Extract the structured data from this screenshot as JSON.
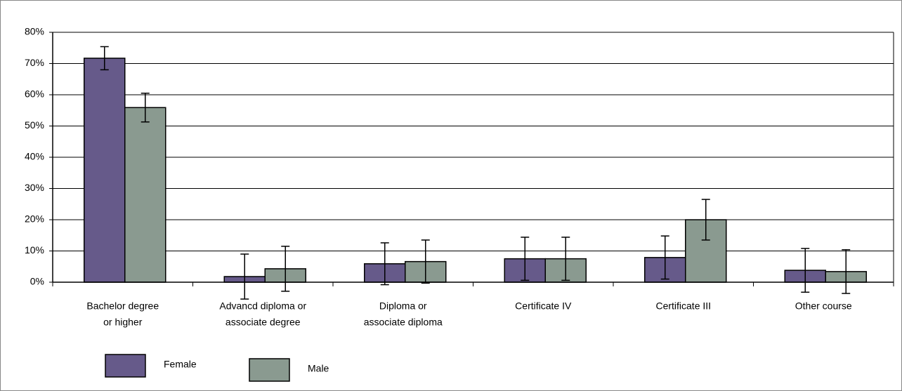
{
  "chart_data": {
    "type": "bar",
    "categories": [
      [
        "Bachelor degree",
        "or higher"
      ],
      [
        "Advancd diploma or",
        "associate degree"
      ],
      [
        "Diploma or",
        "associate diploma"
      ],
      [
        "Certificate IV"
      ],
      [
        "Certificate III"
      ],
      [
        "Other course"
      ]
    ],
    "series": [
      {
        "name": "Female",
        "color": "#665a8a",
        "values": [
          71.7,
          1.8,
          5.9,
          7.5,
          7.9,
          3.8
        ],
        "errors": [
          3.7,
          7.2,
          6.7,
          6.9,
          6.9,
          7.0
        ]
      },
      {
        "name": "Male",
        "color": "#8a9a90",
        "values": [
          55.9,
          4.3,
          6.6,
          7.5,
          20.0,
          3.4
        ],
        "errors": [
          4.6,
          7.2,
          6.9,
          6.9,
          6.5,
          7.0
        ]
      }
    ],
    "ylim": [
      0,
      80
    ],
    "yticks": [
      {
        "value": 0,
        "label": "0%"
      },
      {
        "value": 10,
        "label": "10%"
      },
      {
        "value": 20,
        "label": "20%"
      },
      {
        "value": 30,
        "label": "30%"
      },
      {
        "value": 40,
        "label": "40%"
      },
      {
        "value": 50,
        "label": "50%"
      },
      {
        "value": 60,
        "label": "60%"
      },
      {
        "value": 70,
        "label": "70%"
      },
      {
        "value": 80,
        "label": "80%"
      }
    ],
    "grid": true,
    "legend": "bottom-left"
  }
}
